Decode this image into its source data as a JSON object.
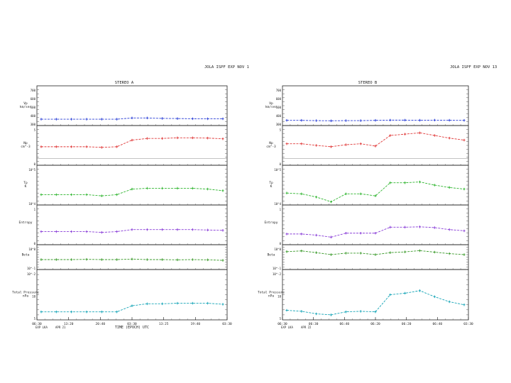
{
  "header": {
    "left": "JOLA ISPF EXP NOV 1",
    "right": "JOLA ISPF EXP NOV 13"
  },
  "colors": {
    "vp": "#2a3fd6",
    "np": "#e03a3a",
    "tp": "#2fb52f",
    "entropy": "#8a3fd8",
    "beta": "#3a9a2a",
    "pressure": "#19a6b8",
    "frame": "#222222",
    "grid": "#555555"
  },
  "chart_data": [
    {
      "type": "line",
      "title": "STEREO A",
      "xlabel": "TIME (EPOCH) UTC",
      "x_ticks": [
        "06:30",
        "13:20",
        "20:40",
        "03:30",
        "13:25",
        "19:40",
        "03:30"
      ],
      "footer_left": [
        "08:30",
        "EXP LKA",
        "APR 21"
      ],
      "panels": [
        {
          "key": "vp",
          "label": [
            "Vp",
            "km/sec"
          ],
          "ticks": [
            "700",
            "600",
            "500",
            "400",
            "300"
          ],
          "ylim": [
            250,
            750
          ],
          "series": [
            {
              "points": [
                [
                  0,
                  330
                ],
                [
                  1,
                  330
                ],
                [
                  2,
                  330
                ],
                [
                  3,
                  330
                ],
                [
                  4,
                  330
                ],
                [
                  5,
                  330
                ],
                [
                  6,
                  345
                ],
                [
                  7,
                  345
                ],
                [
                  8,
                  340
                ],
                [
                  9,
                  338
                ],
                [
                  10,
                  336
                ],
                [
                  11,
                  335
                ],
                [
                  12,
                  335
                ]
              ]
            }
          ]
        },
        {
          "key": "np",
          "label": [
            "Np",
            "cm^-3"
          ],
          "ticks": [
            "5",
            "0"
          ],
          "ylim": [
            -2,
            10
          ],
          "series": [
            {
              "points": [
                [
                  0,
                  3.6
                ],
                [
                  1,
                  3.6
                ],
                [
                  2,
                  3.6
                ],
                [
                  3,
                  3.6
                ],
                [
                  4,
                  3.4
                ],
                [
                  5,
                  3.6
                ],
                [
                  6,
                  5.6
                ],
                [
                  7,
                  6.1
                ],
                [
                  8,
                  6.1
                ],
                [
                  9,
                  6.3
                ],
                [
                  10,
                  6.3
                ],
                [
                  11,
                  6.2
                ],
                [
                  12,
                  6.0
                ]
              ]
            }
          ]
        },
        {
          "key": "tp",
          "label": [
            "Tp",
            "K"
          ],
          "ticks": [
            "10^5",
            "10^4"
          ],
          "ylim": [
            0,
            10
          ],
          "series": [
            {
              "points": [
                [
                  0,
                  2.6
                ],
                [
                  1,
                  2.6
                ],
                [
                  2,
                  2.6
                ],
                [
                  3,
                  2.6
                ],
                [
                  4,
                  2.3
                ],
                [
                  5,
                  2.6
                ],
                [
                  6,
                  4.0
                ],
                [
                  7,
                  4.2
                ],
                [
                  8,
                  4.2
                ],
                [
                  9,
                  4.2
                ],
                [
                  10,
                  4.2
                ],
                [
                  11,
                  4.0
                ],
                [
                  12,
                  3.6
                ]
              ]
            }
          ]
        },
        {
          "key": "entropy",
          "label": [
            "Entropy"
          ],
          "ticks": [
            "1",
            "0"
          ],
          "ylim": [
            0,
            10
          ],
          "series": [
            {
              "points": [
                [
                  0,
                  3.3
                ],
                [
                  1,
                  3.3
                ],
                [
                  2,
                  3.3
                ],
                [
                  3,
                  3.3
                ],
                [
                  4,
                  3.1
                ],
                [
                  5,
                  3.3
                ],
                [
                  6,
                  3.8
                ],
                [
                  7,
                  3.8
                ],
                [
                  8,
                  3.8
                ],
                [
                  9,
                  3.8
                ],
                [
                  10,
                  3.8
                ],
                [
                  11,
                  3.7
                ],
                [
                  12,
                  3.6
                ]
              ]
            }
          ]
        },
        {
          "key": "beta",
          "label": [
            "Beta"
          ],
          "ticks": [
            "10^0",
            "10^-1"
          ],
          "ylim": [
            0,
            10
          ],
          "series": [
            {
              "points": [
                [
                  0,
                  4.0
                ],
                [
                  1,
                  4.0
                ],
                [
                  2,
                  4.0
                ],
                [
                  3,
                  4.1
                ],
                [
                  4,
                  4.0
                ],
                [
                  5,
                  4.0
                ],
                [
                  6,
                  4.2
                ],
                [
                  7,
                  4.0
                ],
                [
                  8,
                  4.0
                ],
                [
                  9,
                  3.9
                ],
                [
                  10,
                  4.0
                ],
                [
                  11,
                  3.9
                ],
                [
                  12,
                  3.7
                ]
              ]
            }
          ]
        },
        {
          "key": "pressure",
          "label": [
            "Total Pressure",
            "nPa"
          ],
          "ticks": [
            "10^-2",
            "10",
            "5"
          ],
          "ylim": [
            0,
            10
          ],
          "series": [
            {
              "points": [
                [
                  0,
                  1.6
                ],
                [
                  1,
                  1.6
                ],
                [
                  2,
                  1.6
                ],
                [
                  3,
                  1.6
                ],
                [
                  4,
                  1.6
                ],
                [
                  5,
                  1.6
                ],
                [
                  6,
                  2.8
                ],
                [
                  7,
                  3.2
                ],
                [
                  8,
                  3.2
                ],
                [
                  9,
                  3.3
                ],
                [
                  10,
                  3.3
                ],
                [
                  11,
                  3.3
                ],
                [
                  12,
                  3.1
                ]
              ]
            }
          ]
        }
      ]
    },
    {
      "type": "line",
      "title": "STEREO B",
      "xlabel": "",
      "x_ticks": [
        "06:30",
        "06:30",
        "06:40",
        "06:20",
        "06:20",
        "06:40",
        "03:30"
      ],
      "footer_left": [
        "08:30",
        "EXP LKA",
        "APR 22"
      ],
      "panels": [
        {
          "key": "vp",
          "label": [
            "Vp",
            "km/sec"
          ],
          "ticks": [
            "700",
            "600",
            "500",
            "400",
            "300"
          ],
          "ylim": [
            250,
            750
          ],
          "series": [
            {
              "points": [
                [
                  0,
                  315
                ],
                [
                  1,
                  315
                ],
                [
                  2,
                  312
                ],
                [
                  3,
                  310
                ],
                [
                  4,
                  312
                ],
                [
                  5,
                  312
                ],
                [
                  6,
                  315
                ],
                [
                  7,
                  318
                ],
                [
                  8,
                  318
                ],
                [
                  9,
                  316
                ],
                [
                  10,
                  318
                ],
                [
                  11,
                  316
                ],
                [
                  12,
                  315
                ]
              ]
            }
          ]
        },
        {
          "key": "np",
          "label": [
            "Np",
            "cm^-3"
          ],
          "ticks": [
            "5",
            "0"
          ],
          "ylim": [
            -2,
            10
          ],
          "series": [
            {
              "points": [
                [
                  0,
                  4.5
                ],
                [
                  1,
                  4.5
                ],
                [
                  2,
                  4.0
                ],
                [
                  3,
                  3.6
                ],
                [
                  4,
                  4.2
                ],
                [
                  5,
                  4.5
                ],
                [
                  6,
                  3.8
                ],
                [
                  7,
                  7.0
                ],
                [
                  8,
                  7.4
                ],
                [
                  9,
                  7.8
                ],
                [
                  10,
                  7.0
                ],
                [
                  11,
                  6.2
                ],
                [
                  12,
                  5.6
                ]
              ]
            }
          ]
        },
        {
          "key": "tp",
          "label": [
            "Tp",
            "K"
          ],
          "ticks": [
            "10^5",
            "10^4"
          ],
          "ylim": [
            0,
            10
          ],
          "series": [
            {
              "points": [
                [
                  0,
                  3.0
                ],
                [
                  1,
                  2.8
                ],
                [
                  2,
                  2.0
                ],
                [
                  3,
                  0.8
                ],
                [
                  4,
                  2.8
                ],
                [
                  5,
                  2.8
                ],
                [
                  6,
                  2.3
                ],
                [
                  7,
                  5.6
                ],
                [
                  8,
                  5.6
                ],
                [
                  9,
                  5.8
                ],
                [
                  10,
                  5.0
                ],
                [
                  11,
                  4.4
                ],
                [
                  12,
                  4.0
                ]
              ]
            }
          ]
        },
        {
          "key": "entropy",
          "label": [
            "Entropy"
          ],
          "ticks": [
            "1",
            "0"
          ],
          "ylim": [
            0,
            10
          ],
          "series": [
            {
              "points": [
                [
                  0,
                  2.7
                ],
                [
                  1,
                  2.7
                ],
                [
                  2,
                  2.4
                ],
                [
                  3,
                  1.9
                ],
                [
                  4,
                  2.9
                ],
                [
                  5,
                  2.9
                ],
                [
                  6,
                  2.9
                ],
                [
                  7,
                  4.4
                ],
                [
                  8,
                  4.4
                ],
                [
                  9,
                  4.5
                ],
                [
                  10,
                  4.3
                ],
                [
                  11,
                  3.8
                ],
                [
                  12,
                  3.5
                ]
              ]
            }
          ]
        },
        {
          "key": "beta",
          "label": [
            "Beta"
          ],
          "ticks": [
            "10^0",
            "10^-1"
          ],
          "ylim": [
            0,
            10
          ],
          "series": [
            {
              "points": [
                [
                  0,
                  7.2
                ],
                [
                  1,
                  7.5
                ],
                [
                  2,
                  6.8
                ],
                [
                  3,
                  6.0
                ],
                [
                  4,
                  6.6
                ],
                [
                  5,
                  6.6
                ],
                [
                  6,
                  6.0
                ],
                [
                  7,
                  6.8
                ],
                [
                  8,
                  7.1
                ],
                [
                  9,
                  7.6
                ],
                [
                  10,
                  7.0
                ],
                [
                  11,
                  6.4
                ],
                [
                  12,
                  6.0
                ]
              ]
            }
          ]
        },
        {
          "key": "pressure",
          "label": [
            "Total Pressure",
            "nPa"
          ],
          "ticks": [
            "10^-2",
            "10",
            "5"
          ],
          "ylim": [
            0,
            10
          ],
          "series": [
            {
              "points": [
                [
                  0,
                  1.9
                ],
                [
                  1,
                  1.7
                ],
                [
                  2,
                  1.2
                ],
                [
                  3,
                  1.0
                ],
                [
                  4,
                  1.6
                ],
                [
                  5,
                  1.7
                ],
                [
                  6,
                  1.6
                ],
                [
                  7,
                  5.0
                ],
                [
                  8,
                  5.3
                ],
                [
                  9,
                  5.8
                ],
                [
                  10,
                  4.6
                ],
                [
                  11,
                  3.6
                ],
                [
                  12,
                  3.0
                ]
              ]
            }
          ]
        }
      ]
    }
  ]
}
